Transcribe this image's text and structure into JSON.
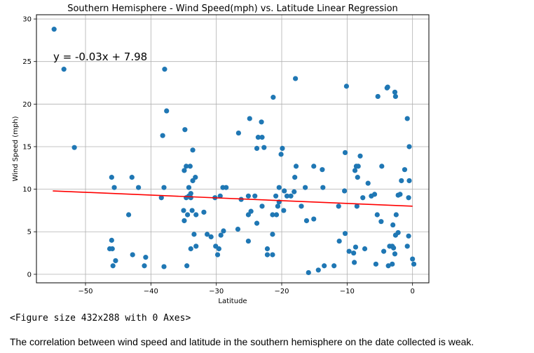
{
  "chart_data": {
    "type": "scatter",
    "title": "Southern Hemisphere - Wind Speed(mph) vs. Latitude Linear Regression",
    "xlabel": "Latitude",
    "ylabel": "Wind Speed (mph)",
    "xlim": [
      -57.5,
      2.5
    ],
    "ylim": [
      -1.0,
      30.5
    ],
    "xticks": [
      -50,
      -40,
      -30,
      -20,
      -10,
      0
    ],
    "xtick_labels": [
      "−50",
      "−40",
      "−30",
      "−20",
      "−10",
      "0"
    ],
    "yticks": [
      0,
      5,
      10,
      15,
      20,
      25,
      30
    ],
    "ytick_labels": [
      "0",
      "5",
      "10",
      "15",
      "20",
      "25",
      "30"
    ],
    "grid": true,
    "point_color": "#1f77b4",
    "regression": {
      "equation": "y = -0.03x + 7.98",
      "color": "#ff0000",
      "line": [
        [
          -55,
          9.8
        ],
        [
          0,
          8.0
        ]
      ]
    },
    "points": [
      [
        -54.8,
        28.8
      ],
      [
        -53.3,
        24.1
      ],
      [
        -51.7,
        14.9
      ],
      [
        -46.0,
        11.4
      ],
      [
        -45.6,
        10.2
      ],
      [
        -46.0,
        4.0
      ],
      [
        -46.3,
        3.0
      ],
      [
        -45.9,
        3.0
      ],
      [
        -45.4,
        1.6
      ],
      [
        -45.8,
        1.0
      ],
      [
        -43.4,
        7.0
      ],
      [
        -42.9,
        11.4
      ],
      [
        -41.9,
        10.2
      ],
      [
        -42.8,
        2.3
      ],
      [
        -40.8,
        2.0
      ],
      [
        -41.0,
        1.0
      ],
      [
        -38.4,
        9.0
      ],
      [
        -38.0,
        10.2
      ],
      [
        -37.6,
        19.2
      ],
      [
        -38.2,
        16.3
      ],
      [
        -37.9,
        24.1
      ],
      [
        -38.0,
        0.9
      ],
      [
        -34.8,
        17.0
      ],
      [
        -34.6,
        12.7
      ],
      [
        -34.9,
        12.2
      ],
      [
        -34.0,
        12.7
      ],
      [
        -33.6,
        14.6
      ],
      [
        -33.2,
        11.4
      ],
      [
        -33.6,
        11.0
      ],
      [
        -34.2,
        10.2
      ],
      [
        -33.9,
        9.5
      ],
      [
        -34.6,
        9.0
      ],
      [
        -34.2,
        9.2
      ],
      [
        -33.9,
        9.0
      ],
      [
        -35.0,
        7.5
      ],
      [
        -34.4,
        7.0
      ],
      [
        -33.7,
        7.5
      ],
      [
        -33.1,
        7.0
      ],
      [
        -34.9,
        6.3
      ],
      [
        -33.4,
        4.7
      ],
      [
        -33.1,
        3.3
      ],
      [
        -33.9,
        3.0
      ],
      [
        -34.5,
        1.0
      ],
      [
        -31.9,
        7.3
      ],
      [
        -31.4,
        4.7
      ],
      [
        -30.8,
        4.4
      ],
      [
        -30.2,
        9.0
      ],
      [
        -29.4,
        9.2
      ],
      [
        -29.0,
        10.2
      ],
      [
        -28.5,
        10.2
      ],
      [
        -30.1,
        3.3
      ],
      [
        -29.8,
        2.3
      ],
      [
        -29.6,
        3.0
      ],
      [
        -28.9,
        5.1
      ],
      [
        -29.3,
        4.6
      ],
      [
        -26.6,
        16.6
      ],
      [
        -24.9,
        18.3
      ],
      [
        -23.8,
        14.8
      ],
      [
        -23.6,
        16.1
      ],
      [
        -23.0,
        16.1
      ],
      [
        -22.7,
        14.9
      ],
      [
        -23.1,
        17.9
      ],
      [
        -21.3,
        20.8
      ],
      [
        -26.2,
        8.8
      ],
      [
        -25.1,
        9.2
      ],
      [
        -24.1,
        9.2
      ],
      [
        -25.1,
        7.0
      ],
      [
        -24.7,
        7.4
      ],
      [
        -23.8,
        6.0
      ],
      [
        -26.7,
        5.3
      ],
      [
        -25.1,
        3.9
      ],
      [
        -22.2,
        3.0
      ],
      [
        -21.4,
        2.3
      ],
      [
        -22.2,
        2.3
      ],
      [
        -23.0,
        8.0
      ],
      [
        -21.4,
        7.0
      ],
      [
        -21.4,
        4.7
      ],
      [
        -20.8,
        7.0
      ],
      [
        -20.9,
        9.2
      ],
      [
        -19.9,
        14.8
      ],
      [
        -20.1,
        14.1
      ],
      [
        -20.4,
        10.2
      ],
      [
        -19.6,
        9.8
      ],
      [
        -19.2,
        9.2
      ],
      [
        -18.6,
        9.2
      ],
      [
        -18.1,
        9.7
      ],
      [
        -20.6,
        8.0
      ],
      [
        -19.7,
        7.5
      ],
      [
        -20.4,
        8.5
      ],
      [
        -18.0,
        11.4
      ],
      [
        -17.8,
        12.7
      ],
      [
        -17.9,
        23.0
      ],
      [
        -16.4,
        10.2
      ],
      [
        -17.0,
        8.0
      ],
      [
        -16.2,
        6.3
      ],
      [
        -15.9,
        0.2
      ],
      [
        -15.1,
        12.7
      ],
      [
        -13.8,
        12.3
      ],
      [
        -13.7,
        10.2
      ],
      [
        -15.1,
        6.5
      ],
      [
        -14.4,
        0.5
      ],
      [
        -13.5,
        1.0
      ],
      [
        -12.0,
        1.0
      ],
      [
        -11.3,
        8.0
      ],
      [
        -11.2,
        3.9
      ],
      [
        -10.1,
        22.1
      ],
      [
        -10.3,
        14.3
      ],
      [
        -10.4,
        9.8
      ],
      [
        -10.3,
        4.8
      ],
      [
        -9.7,
        2.7
      ],
      [
        -8.6,
        12.7
      ],
      [
        -8.8,
        12.2
      ],
      [
        -8.3,
        12.7
      ],
      [
        -8.0,
        13.9
      ],
      [
        -7.6,
        9.0
      ],
      [
        -8.4,
        11.4
      ],
      [
        -6.8,
        10.7
      ],
      [
        -6.3,
        9.2
      ],
      [
        -5.8,
        9.4
      ],
      [
        -8.5,
        8.0
      ],
      [
        -7.3,
        3.0
      ],
      [
        -8.7,
        3.2
      ],
      [
        -9.0,
        2.5
      ],
      [
        -8.9,
        1.4
      ],
      [
        -5.4,
        7.0
      ],
      [
        -4.8,
        6.2
      ],
      [
        -5.3,
        20.9
      ],
      [
        -3.9,
        21.9
      ],
      [
        -3.8,
        22.0
      ],
      [
        -2.7,
        21.4
      ],
      [
        -2.6,
        20.9
      ],
      [
        -4.7,
        12.7
      ],
      [
        -3.5,
        3.3
      ],
      [
        -3.1,
        3.3
      ],
      [
        -2.2,
        4.9
      ],
      [
        -2.6,
        4.6
      ],
      [
        -3.0,
        5.8
      ],
      [
        -2.9,
        3.1
      ],
      [
        -4.4,
        2.7
      ],
      [
        -2.7,
        2.4
      ],
      [
        -3.7,
        1.0
      ],
      [
        -3.1,
        1.2
      ],
      [
        -5.6,
        1.2
      ],
      [
        -1.2,
        12.3
      ],
      [
        -1.7,
        11.0
      ],
      [
        -0.8,
        18.3
      ],
      [
        -0.5,
        15.0
      ],
      [
        -0.5,
        11.0
      ],
      [
        -0.6,
        9.0
      ],
      [
        -0.6,
        4.5
      ],
      [
        -0.8,
        3.3
      ],
      [
        -1.9,
        9.4
      ],
      [
        -2.2,
        9.3
      ],
      [
        -2.5,
        7.0
      ],
      [
        0.0,
        1.8
      ],
      [
        0.2,
        1.2
      ]
    ]
  },
  "figure_size_text": "<Figure size 432x288 with 0 Axes>",
  "note": "The correlation between wind speed and latitude in the southern hemisphere on the date collected is weak."
}
